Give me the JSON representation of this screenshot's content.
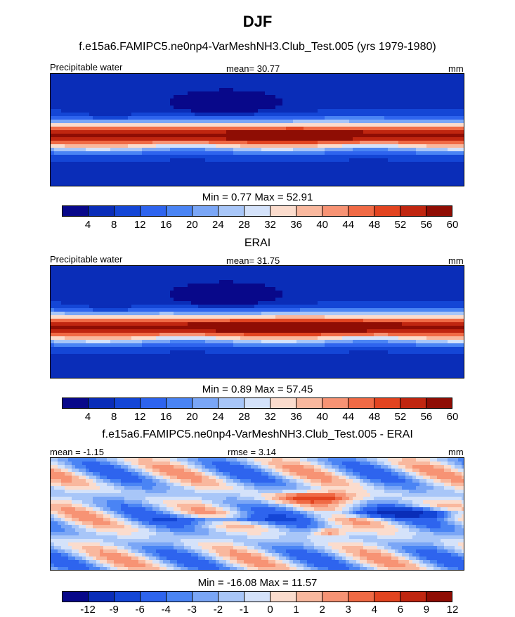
{
  "title": "DJF",
  "panels": [
    {
      "heading": "f.e15a6.FAMIPC5.ne0np4-VarMeshNH3.Club_Test.005 (yrs 1979-1980)",
      "left_label": "Precipitable water",
      "center_label": "mean=  30.77",
      "right_label": "mm",
      "stats": "Min =   0.77 Max =  52.91",
      "colorbar_ticks": [
        "4",
        "8",
        "12",
        "16",
        "20",
        "24",
        "28",
        "32",
        "36",
        "40",
        "44",
        "48",
        "52",
        "56",
        "60"
      ]
    },
    {
      "heading": "ERAI",
      "left_label": "Precipitable water",
      "center_label": "mean=  31.75",
      "right_label": "mm",
      "stats": "Min =   0.89 Max =  57.45",
      "colorbar_ticks": [
        "4",
        "8",
        "12",
        "16",
        "20",
        "24",
        "28",
        "32",
        "36",
        "40",
        "44",
        "48",
        "52",
        "56",
        "60"
      ]
    },
    {
      "heading": "f.e15a6.FAMIPC5.ne0np4-VarMeshNH3.Club_Test.005 - ERAI",
      "left_label": "mean =  -1.15",
      "center_label": "rmse =   3.14",
      "right_label": "mm",
      "stats": "Min = -16.08 Max =  11.57",
      "colorbar_ticks": [
        "-12",
        "-9",
        "-6",
        "-4",
        "-3",
        "-2",
        "-1",
        "0",
        "1",
        "2",
        "3",
        "4",
        "6",
        "9",
        "12"
      ]
    }
  ],
  "palette": [
    "#08088a",
    "#0a2db8",
    "#1446d6",
    "#2e64ee",
    "#4a84f4",
    "#7aa6f6",
    "#a8c6f8",
    "#d4e2fa",
    "#fbdccd",
    "#f9b89e",
    "#f79374",
    "#f06a45",
    "#e24420",
    "#c02610",
    "#8f0d04"
  ],
  "chart_data": [
    {
      "type": "heatmap",
      "title": "f.e15a6.FAMIPC5.ne0np4-VarMeshNH3.Club_Test.005 (yrs 1979-1980)",
      "variable": "Precipitable water",
      "units": "mm",
      "mean": 30.77,
      "min": 0.77,
      "max": 52.91,
      "levels": [
        4,
        8,
        12,
        16,
        20,
        24,
        28,
        32,
        36,
        40,
        44,
        48,
        52,
        56,
        60
      ]
    },
    {
      "type": "heatmap",
      "title": "ERAI",
      "variable": "Precipitable water",
      "units": "mm",
      "mean": 31.75,
      "min": 0.89,
      "max": 57.45,
      "levels": [
        4,
        8,
        12,
        16,
        20,
        24,
        28,
        32,
        36,
        40,
        44,
        48,
        52,
        56,
        60
      ]
    },
    {
      "type": "heatmap",
      "title": "f.e15a6.FAMIPC5.ne0np4-VarMeshNH3.Club_Test.005 - ERAI",
      "units": "mm",
      "mean": -1.15,
      "rmse": 3.14,
      "min": -16.08,
      "max": 11.57,
      "levels": [
        -12,
        -9,
        -6,
        -4,
        -3,
        -2,
        -1,
        0,
        1,
        2,
        3,
        4,
        6,
        9,
        12
      ]
    }
  ]
}
